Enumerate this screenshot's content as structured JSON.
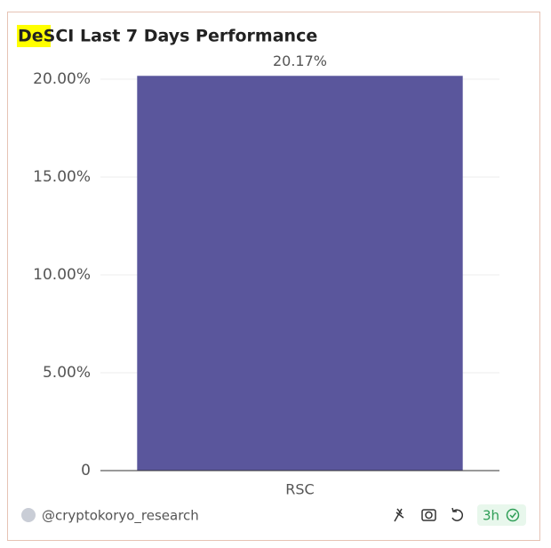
{
  "chart_data": {
    "type": "bar",
    "title": "DeSCI Last 7 Days Performance",
    "categories": [
      "RSC"
    ],
    "values": [
      20.17
    ],
    "value_labels": [
      "20.17%"
    ],
    "color": "#5a569c",
    "ylim": [
      0,
      20.5
    ],
    "yticks": [
      0,
      {
        "value": 5,
        "label": "5.00%"
      },
      {
        "value": 10,
        "label": "10.00%"
      },
      {
        "value": 15,
        "label": "15.00%"
      },
      {
        "value": 20,
        "label": "20.00%"
      }
    ],
    "grid": true
  },
  "footer": {
    "author": "@cryptokoryo_research",
    "age": "3h"
  }
}
